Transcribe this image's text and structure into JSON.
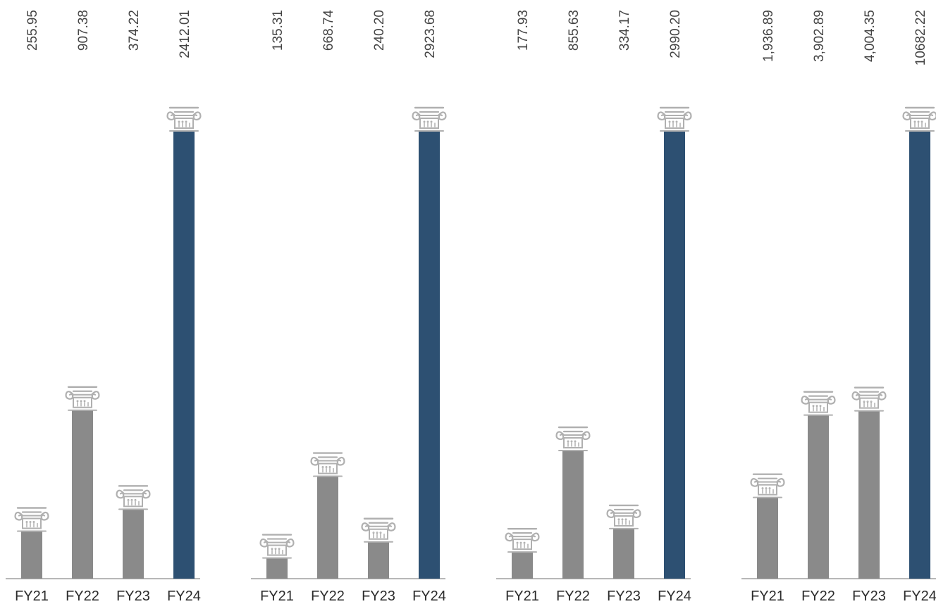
{
  "chart_data": [
    {
      "type": "bar",
      "categories": [
        "FY21",
        "FY22",
        "FY23",
        "FY24"
      ],
      "values": [
        255.95,
        907.38,
        374.22,
        2412.01
      ],
      "value_labels": [
        "255.95",
        "907.38",
        "374.22",
        "2412.01"
      ],
      "highlight_index": 3
    },
    {
      "type": "bar",
      "categories": [
        "FY21",
        "FY22",
        "FY23",
        "FY24"
      ],
      "values": [
        135.31,
        668.74,
        240.2,
        2923.68
      ],
      "value_labels": [
        "135.31",
        "668.74",
        "240.20",
        "2923.68"
      ],
      "highlight_index": 3
    },
    {
      "type": "bar",
      "categories": [
        "FY21",
        "FY22",
        "FY23",
        "FY24"
      ],
      "values": [
        177.93,
        855.63,
        334.17,
        2990.2
      ],
      "value_labels": [
        "177.93",
        "855.63",
        "334.17",
        "2990.20"
      ],
      "highlight_index": 3
    },
    {
      "type": "bar",
      "categories": [
        "FY21",
        "FY22",
        "FY23",
        "FY24"
      ],
      "values": [
        1936.89,
        3902.89,
        4004.35,
        10682.22
      ],
      "value_labels": [
        "1,936.89",
        "3,902.89",
        "4,004.35",
        "10682.22"
      ],
      "highlight_index": 3
    }
  ],
  "colors": {
    "bar": "#8a8a8a",
    "highlight": "#2d5072",
    "capital": "#b0b0b0",
    "axis": "#8c8c8c",
    "value_text": "#444444",
    "category_text": "#2b2b2b"
  },
  "icons": {
    "bar_top": "ionic-capital-icon"
  }
}
